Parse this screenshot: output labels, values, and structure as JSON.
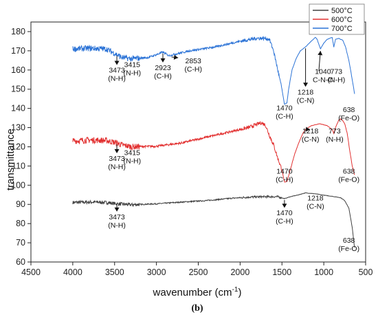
{
  "chart_data": {
    "type": "line",
    "xlabel": "wavenumber (cm",
    "xlabel_sup": "-1",
    "xlabel_close": ")",
    "ylabel": "transmittance",
    "caption": "(b)",
    "xlim": [
      4500,
      500
    ],
    "ylim": [
      60,
      185
    ],
    "xticks": [
      4500,
      4000,
      3500,
      3000,
      2500,
      2000,
      1500,
      1000,
      500
    ],
    "yticks": [
      60,
      70,
      80,
      90,
      100,
      110,
      120,
      130,
      140,
      150,
      160,
      170,
      180
    ],
    "legend_position": "top-right",
    "series": [
      {
        "name": "500°C",
        "color": "#404040",
        "noise": 0.9,
        "points": [
          [
            4000,
            91
          ],
          [
            3800,
            91.2
          ],
          [
            3600,
            91
          ],
          [
            3473,
            90.3
          ],
          [
            3300,
            89.8
          ],
          [
            3000,
            90.3
          ],
          [
            2700,
            91.2
          ],
          [
            2400,
            92
          ],
          [
            2100,
            93.2
          ],
          [
            1900,
            93.8
          ],
          [
            1700,
            94
          ],
          [
            1550,
            94
          ],
          [
            1470,
            93
          ],
          [
            1400,
            94
          ],
          [
            1300,
            95
          ],
          [
            1218,
            96
          ],
          [
            1100,
            95.5
          ],
          [
            1000,
            94.8
          ],
          [
            900,
            94.2
          ],
          [
            800,
            93.5
          ],
          [
            750,
            92
          ],
          [
            700,
            88
          ],
          [
            660,
            78
          ],
          [
            640,
            70
          ],
          [
            630,
            67
          ]
        ]
      },
      {
        "name": "600°C",
        "color": "#e23030",
        "noise": 1.6,
        "points": [
          [
            4000,
            123
          ],
          [
            3800,
            123.5
          ],
          [
            3600,
            123.3
          ],
          [
            3473,
            122
          ],
          [
            3415,
            121
          ],
          [
            3300,
            120
          ],
          [
            3000,
            120.3
          ],
          [
            2700,
            122
          ],
          [
            2400,
            125
          ],
          [
            2100,
            128
          ],
          [
            1900,
            130
          ],
          [
            1750,
            132.5
          ],
          [
            1700,
            131.5
          ],
          [
            1650,
            126
          ],
          [
            1600,
            121
          ],
          [
            1550,
            114
          ],
          [
            1500,
            108
          ],
          [
            1470,
            101.5
          ],
          [
            1440,
            102
          ],
          [
            1400,
            108
          ],
          [
            1350,
            116
          ],
          [
            1300,
            122
          ],
          [
            1250,
            127
          ],
          [
            1218,
            129
          ],
          [
            1150,
            131
          ],
          [
            1050,
            132
          ],
          [
            960,
            131
          ],
          [
            900,
            129
          ],
          [
            880,
            127
          ],
          [
            860,
            130
          ],
          [
            820,
            134
          ],
          [
            800,
            134.5
          ],
          [
            780,
            134
          ],
          [
            750,
            132
          ],
          [
            720,
            127
          ],
          [
            690,
            118
          ],
          [
            660,
            110
          ],
          [
            630,
            105
          ]
        ]
      },
      {
        "name": "700°C",
        "color": "#2a72d6",
        "noise": 1.5,
        "points": [
          [
            4000,
            171
          ],
          [
            3800,
            171.3
          ],
          [
            3600,
            171
          ],
          [
            3473,
            168
          ],
          [
            3415,
            166.5
          ],
          [
            3300,
            165.8
          ],
          [
            3100,
            166.5
          ],
          [
            3000,
            168
          ],
          [
            2923,
            169.3
          ],
          [
            2853,
            167.5
          ],
          [
            2800,
            168
          ],
          [
            2600,
            170
          ],
          [
            2300,
            172
          ],
          [
            2000,
            175
          ],
          [
            1800,
            176.5
          ],
          [
            1700,
            176.5
          ],
          [
            1650,
            176
          ],
          [
            1600,
            170
          ],
          [
            1550,
            160
          ],
          [
            1500,
            150
          ],
          [
            1470,
            142
          ],
          [
            1440,
            143
          ],
          [
            1420,
            150
          ],
          [
            1380,
            160
          ],
          [
            1330,
            166
          ],
          [
            1280,
            170
          ],
          [
            1218,
            172
          ],
          [
            1150,
            175
          ],
          [
            1100,
            177
          ],
          [
            1080,
            176
          ],
          [
            1040,
            171
          ],
          [
            1000,
            174
          ],
          [
            960,
            176
          ],
          [
            900,
            177
          ],
          [
            880,
            172
          ],
          [
            860,
            176
          ],
          [
            820,
            176.5
          ],
          [
            800,
            176
          ],
          [
            773,
            175.5
          ],
          [
            740,
            172
          ],
          [
            700,
            165
          ],
          [
            660,
            155
          ],
          [
            630,
            147
          ]
        ]
      }
    ],
    "annotations": [
      {
        "series": 2,
        "label": "3473",
        "sub": "(N-H)",
        "x": 3473,
        "dir": "down"
      },
      {
        "series": 2,
        "label": "3415",
        "sub": "(N-H)",
        "x": 3290,
        "text_only": true
      },
      {
        "series": 2,
        "label": "2923",
        "sub": "(C-H)",
        "x": 2923,
        "dir": "down"
      },
      {
        "series": 2,
        "label": "2853",
        "sub": "(C-H)",
        "x": 2853,
        "dir": "diag",
        "tx": 2560,
        "ty": 163.5
      },
      {
        "series": 2,
        "label": "1470",
        "sub": "(C-H)",
        "x": 1470,
        "text_only": true,
        "ty": 139
      },
      {
        "series": 2,
        "label": "1218",
        "sub": "(C-N)",
        "x": 1218,
        "dir": "down",
        "ty": 148
      },
      {
        "series": 2,
        "label": "1040",
        "sub": "C-N-C",
        "x": 1040,
        "dir": "diag-up",
        "tx": 1010,
        "ty": 158
      },
      {
        "series": 2,
        "label": "773",
        "sub": "(N-H)",
        "x": 850,
        "text_only": true,
        "ty": 158
      },
      {
        "series": 2,
        "label": "638",
        "sub": "(Fe-O)",
        "x": 700,
        "text_only": true,
        "ty": 138
      },
      {
        "series": 1,
        "label": "3473",
        "sub": "(N-H)",
        "x": 3473,
        "dir": "down"
      },
      {
        "series": 1,
        "label": "3415",
        "sub": "(N-H)",
        "x": 3290,
        "text_only": true
      },
      {
        "series": 1,
        "label": "1470",
        "sub": "(C-H)",
        "x": 1470,
        "text_only": true,
        "ty": 106
      },
      {
        "series": 1,
        "label": "1218",
        "sub": "(C-N)",
        "x": 1218,
        "dir": "diag-up",
        "tx": 1160,
        "ty": 127
      },
      {
        "series": 1,
        "label": "773",
        "sub": "(N-H)",
        "x": 870,
        "text_only": true,
        "ty": 127
      },
      {
        "series": 1,
        "label": "638",
        "sub": "(Fe-O)",
        "x": 700,
        "text_only": true,
        "ty": 106
      },
      {
        "series": 0,
        "label": "3473",
        "sub": "(N-H)",
        "x": 3473,
        "dir": "down",
        "ty": 83
      },
      {
        "series": 0,
        "label": "1470",
        "sub": "(C-H)",
        "x": 1470,
        "dir": "down",
        "ty": 85
      },
      {
        "series": 0,
        "label": "1218",
        "sub": "(C-N)",
        "x": 1100,
        "text_only": true,
        "ty": 92
      },
      {
        "series": 0,
        "label": "638",
        "sub": "(Fe-O)",
        "x": 700,
        "text_only": true,
        "ty": 70
      }
    ]
  }
}
